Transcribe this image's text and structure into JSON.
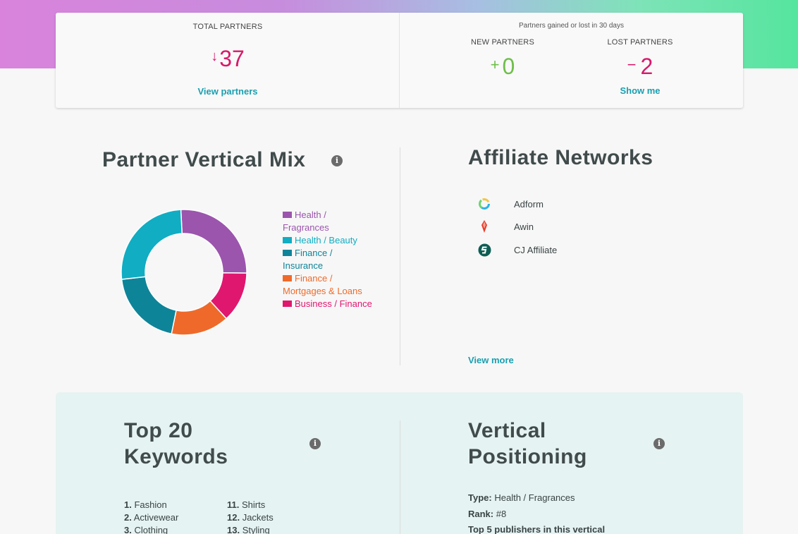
{
  "stats": {
    "total_label": "TOTAL PARTNERS",
    "total_arrow": "↓",
    "total_value": "37",
    "view_partners": "View partners",
    "gained_note": "Partners gained or lost in 30 days",
    "new_label": "NEW PARTNERS",
    "new_sign": "+",
    "new_value": "0",
    "lost_label": "LOST PARTNERS",
    "lost_sign": "−",
    "lost_value": "2",
    "show_me": "Show me"
  },
  "vertical_mix": {
    "title": "Partner Vertical Mix",
    "info_icon": "info-icon",
    "legend": [
      {
        "label": "Health / Fragrances",
        "color": "#9b55ad"
      },
      {
        "label": "Health / Beauty",
        "color": "#10adc3"
      },
      {
        "label": "Finance / Insurance",
        "color": "#0e8499"
      },
      {
        "label": "Finance / Mortgages & Loans",
        "color": "#ef6a2a"
      },
      {
        "label": "Business / Finance",
        "color": "#e0176f"
      }
    ]
  },
  "chart_data": {
    "type": "pie",
    "categories": [
      "Health / Fragrances",
      "Business / Finance",
      "Finance / Mortgages & Loans",
      "Finance / Insurance",
      "Health / Beauty"
    ],
    "values": [
      26,
      13,
      15,
      20,
      26
    ],
    "colors": [
      "#9b55ad",
      "#e0176f",
      "#ef6a2a",
      "#0e8499",
      "#10adc3"
    ],
    "title": ""
  },
  "networks": {
    "title": "Affiliate Networks",
    "items": [
      {
        "name": "Adform",
        "icon": "adform-logo-icon"
      },
      {
        "name": "Awin",
        "icon": "awin-logo-icon"
      },
      {
        "name": "CJ Affiliate",
        "icon": "cj-affiliate-logo-icon"
      }
    ],
    "view_more": "View more"
  },
  "keywords": {
    "title_line1": "Top 20",
    "title_line2": "Keywords",
    "col1": [
      {
        "num": "1.",
        "word": "Fashion"
      },
      {
        "num": "2.",
        "word": "Activewear"
      },
      {
        "num": "3.",
        "word": "Clothing"
      }
    ],
    "col2": [
      {
        "num": "11.",
        "word": "Shirts"
      },
      {
        "num": "12.",
        "word": "Jackets"
      },
      {
        "num": "13.",
        "word": "Styling"
      }
    ]
  },
  "positioning": {
    "title_line1": "Vertical",
    "title_line2": "Positioning",
    "type_label": "Type:",
    "type_value": "Health / Fragrances",
    "rank_label": "Rank:",
    "rank_value": "#8",
    "top5_label": "Top 5 publishers in this vertical"
  }
}
